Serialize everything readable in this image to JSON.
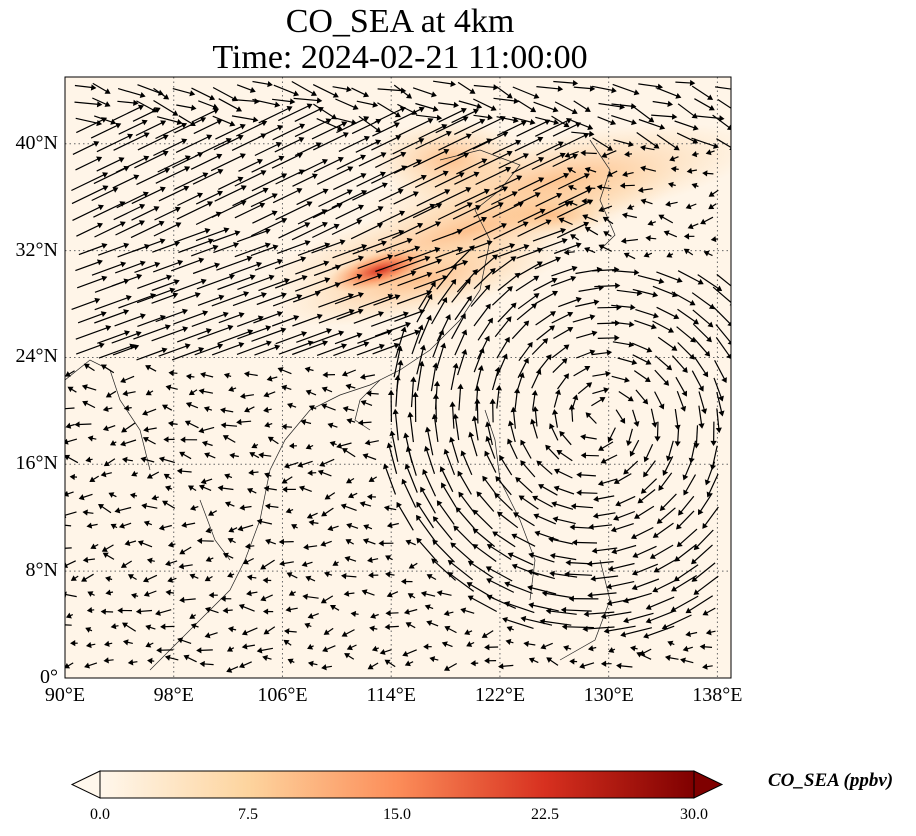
{
  "title": {
    "line1": "CO_SEA at 4km",
    "line2": "Time: 2024-02-21 11:00:00"
  },
  "map": {
    "lon_range": [
      90,
      139
    ],
    "lat_range": [
      0,
      45
    ],
    "lon_ticks": [
      "90°E",
      "98°E",
      "106°E",
      "114°E",
      "122°E",
      "130°E",
      "138°E"
    ],
    "lat_ticks": [
      "0°",
      "8°N",
      "16°N",
      "24°N",
      "32°N",
      "40°N"
    ],
    "gridlines": "dotted",
    "field": "CO_SEA concentration with wind vectors",
    "colormap": "OrRd",
    "colors": {
      "low": "#fff7ec",
      "mid": "#fdbb84",
      "high": "#d7301f",
      "max": "#7f0000"
    }
  },
  "colorbar": {
    "label": "CO_SEA (ppbv)",
    "ticks": [
      "0.0",
      "7.5",
      "15.0",
      "22.5",
      "30.0"
    ],
    "range": [
      0,
      30
    ],
    "extend": "both"
  }
}
